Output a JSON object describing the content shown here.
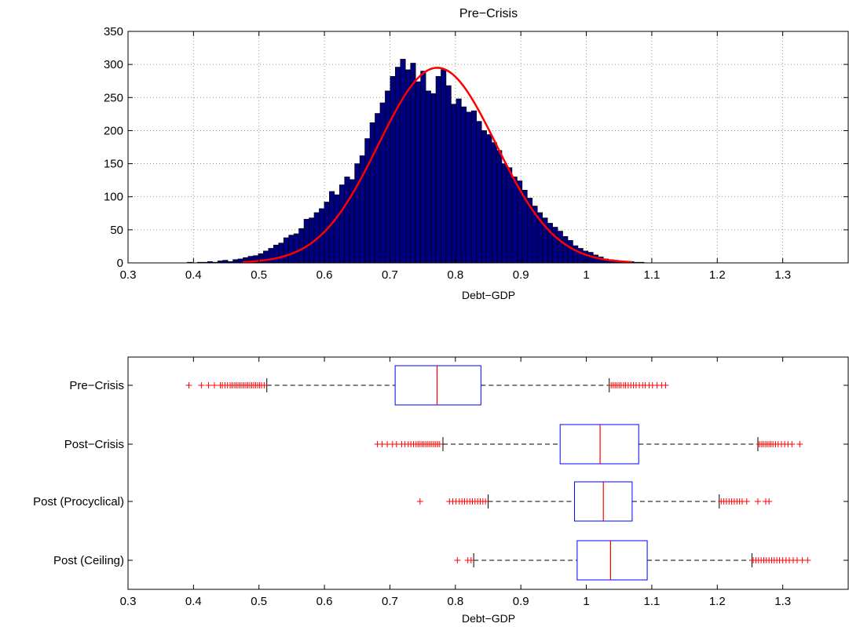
{
  "chart_data": [
    {
      "type": "bar",
      "subtype": "histogram",
      "title": "Pre−Crisis",
      "xlabel": "Debt−GDP",
      "ylabel": "",
      "xlim": [
        0.3,
        1.4
      ],
      "ylim": [
        0,
        350
      ],
      "xticks": [
        "0.3",
        "0.4",
        "0.5",
        "0.6",
        "0.7",
        "0.8",
        "0.9",
        "1",
        "1.1",
        "1.2",
        "1.3"
      ],
      "xtick_values": [
        0.3,
        0.4,
        0.5,
        0.6,
        0.7,
        0.8,
        0.9,
        1.0,
        1.1,
        1.2,
        1.3
      ],
      "yticks": [
        "0",
        "50",
        "100",
        "150",
        "200",
        "250",
        "300",
        "350"
      ],
      "ytick_values": [
        0,
        50,
        100,
        150,
        200,
        250,
        300,
        350
      ],
      "grid": true,
      "bar_color": "#00007f",
      "bin_width": 0.00775,
      "bin_start": 0.3905,
      "counts": [
        1,
        0,
        1,
        1,
        2,
        1,
        3,
        4,
        2,
        5,
        6,
        8,
        10,
        11,
        14,
        18,
        22,
        27,
        30,
        38,
        42,
        44,
        52,
        66,
        68,
        76,
        82,
        92,
        108,
        103,
        118,
        130,
        126,
        150,
        162,
        188,
        212,
        226,
        242,
        260,
        282,
        296,
        308,
        292,
        302,
        274,
        290,
        260,
        256,
        282,
        292,
        268,
        240,
        248,
        236,
        228,
        230,
        214,
        200,
        194,
        182,
        170,
        150,
        144,
        130,
        124,
        110,
        98,
        86,
        76,
        68,
        60,
        54,
        48,
        40,
        34,
        26,
        22,
        18,
        16,
        12,
        9,
        6,
        5,
        4,
        3,
        2,
        2,
        1,
        1
      ],
      "fit": {
        "type": "normal",
        "color": "#ff0000",
        "mu": 0.7724,
        "sigma": 0.09,
        "peak": 295,
        "x_range": [
          0.475,
          1.07
        ]
      }
    },
    {
      "type": "box",
      "orientation": "horizontal",
      "xlabel": "Debt−GDP",
      "title": "",
      "xlim": [
        0.3,
        1.4
      ],
      "xticks": [
        "0.3",
        "0.4",
        "0.5",
        "0.6",
        "0.7",
        "0.8",
        "0.9",
        "1",
        "1.1",
        "1.2",
        "1.3"
      ],
      "xtick_values": [
        0.3,
        0.4,
        0.5,
        0.6,
        0.7,
        0.8,
        0.9,
        1.0,
        1.1,
        1.2,
        1.3
      ],
      "box_color": "#0000ff",
      "median_color": "#ff0000",
      "outlier_color": "#ff0000",
      "series": [
        {
          "name": "Pre−Crisis",
          "q1": 0.708,
          "median": 0.772,
          "q3": 0.839,
          "whisker_low": 0.512,
          "whisker_high": 1.035,
          "outliers": [
            0.393,
            0.412,
            0.423,
            0.432,
            0.441,
            0.444,
            0.448,
            0.452,
            0.456,
            0.459,
            0.462,
            0.465,
            0.468,
            0.471,
            0.474,
            0.477,
            0.48,
            0.483,
            0.486,
            0.489,
            0.492,
            0.495,
            0.498,
            0.501,
            0.504,
            0.508,
            1.038,
            1.041,
            1.044,
            1.047,
            1.05,
            1.053,
            1.057,
            1.06,
            1.064,
            1.068,
            1.072,
            1.076,
            1.081,
            1.086,
            1.09,
            1.096,
            1.101,
            1.108,
            1.115,
            1.121
          ]
        },
        {
          "name": "Post−Crisis",
          "q1": 0.96,
          "median": 1.021,
          "q3": 1.08,
          "whisker_low": 0.781,
          "whisker_high": 1.262,
          "outliers": [
            0.681,
            0.688,
            0.696,
            0.704,
            0.71,
            0.718,
            0.723,
            0.728,
            0.732,
            0.736,
            0.74,
            0.743,
            0.746,
            0.749,
            0.752,
            0.755,
            0.758,
            0.761,
            0.764,
            0.767,
            0.77,
            0.773,
            0.776,
            1.264,
            1.267,
            1.27,
            1.273,
            1.276,
            1.279,
            1.282,
            1.285,
            1.289,
            1.293,
            1.298,
            1.303,
            1.308,
            1.314,
            1.326
          ]
        },
        {
          "name": "Post (Procyclical)",
          "q1": 0.982,
          "median": 1.026,
          "q3": 1.07,
          "whisker_low": 0.85,
          "whisker_high": 1.203,
          "outliers": [
            0.746,
            0.791,
            0.796,
            0.801,
            0.806,
            0.81,
            0.814,
            0.818,
            0.822,
            0.826,
            0.83,
            0.834,
            0.838,
            0.842,
            0.846,
            1.206,
            1.21,
            1.214,
            1.218,
            1.222,
            1.226,
            1.23,
            1.234,
            1.238,
            1.245,
            1.262,
            1.274,
            1.279
          ]
        },
        {
          "name": "Post (Ceiling)",
          "q1": 0.986,
          "median": 1.037,
          "q3": 1.093,
          "whisker_low": 0.828,
          "whisker_high": 1.253,
          "outliers": [
            0.803,
            0.819,
            0.824,
            1.255,
            1.259,
            1.263,
            1.267,
            1.271,
            1.275,
            1.279,
            1.283,
            1.287,
            1.291,
            1.295,
            1.3,
            1.305,
            1.31,
            1.316,
            1.322,
            1.33,
            1.338
          ]
        }
      ]
    }
  ]
}
